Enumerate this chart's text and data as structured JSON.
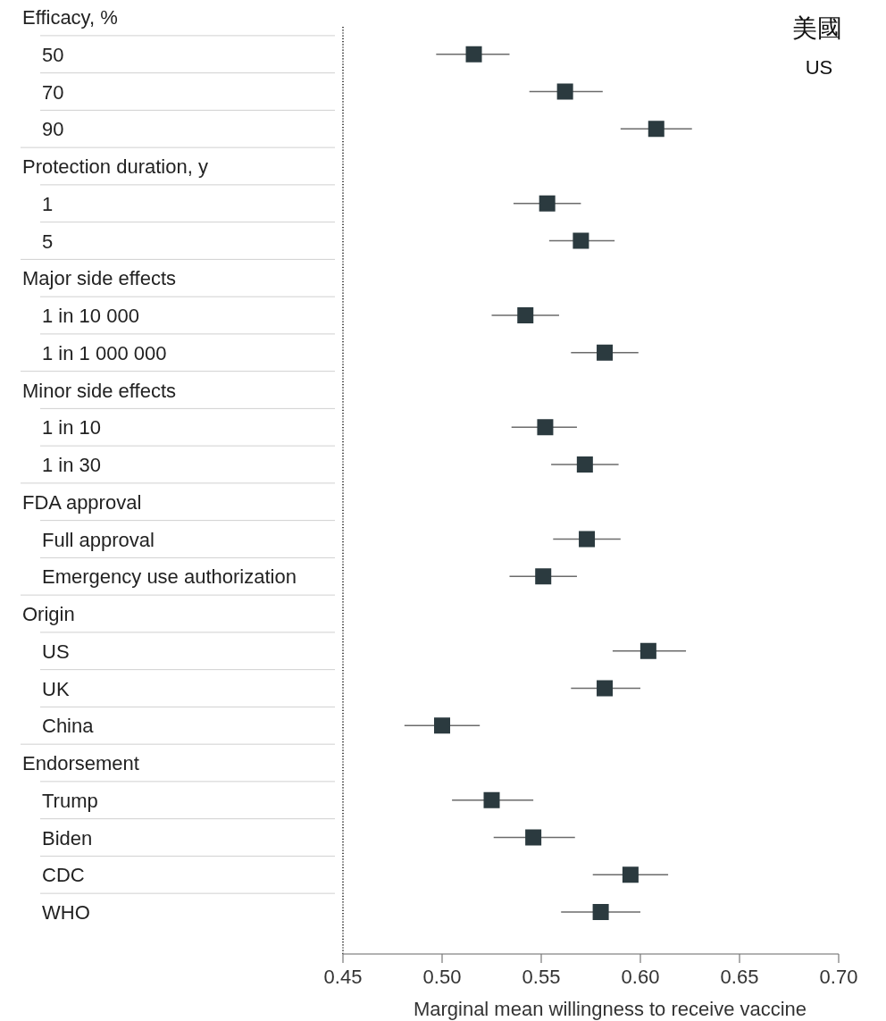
{
  "chart_data": {
    "type": "scatter",
    "orientation": "horizontal",
    "title": "美國",
    "subtitle": "US",
    "xlabel": "Marginal mean willingness to receive vaccine",
    "annotations": [
      "Efficacy, %",
      "Protection duration, y",
      "Major side effects",
      "Minor side effects",
      "FDA approval",
      "Origin",
      "Endorsement"
    ],
    "categories": [
      null,
      "50",
      "70",
      "90",
      null,
      "1",
      "5",
      null,
      "1 in 10 000",
      "1 in 1 000 000",
      null,
      "1 in 10",
      "1 in 30",
      null,
      "Full approval",
      "Emergency use authorization",
      null,
      "US",
      "UK",
      "China",
      null,
      "Trump",
      "Biden",
      "CDC",
      "WHO"
    ],
    "values": [
      null,
      0.516,
      0.562,
      0.608,
      null,
      0.553,
      0.57,
      null,
      0.542,
      0.582,
      null,
      0.552,
      0.572,
      null,
      0.573,
      0.551,
      null,
      0.604,
      0.582,
      0.5,
      null,
      0.525,
      0.546,
      0.595,
      0.58
    ],
    "errors": [
      null,
      [
        0.497,
        0.534
      ],
      [
        0.544,
        0.581
      ],
      [
        0.59,
        0.626
      ],
      null,
      [
        0.536,
        0.57
      ],
      [
        0.554,
        0.587
      ],
      null,
      [
        0.525,
        0.559
      ],
      [
        0.565,
        0.599
      ],
      null,
      [
        0.535,
        0.568
      ],
      [
        0.555,
        0.589
      ],
      null,
      [
        0.556,
        0.59
      ],
      [
        0.534,
        0.568
      ],
      null,
      [
        0.586,
        0.623
      ],
      [
        0.565,
        0.6
      ],
      [
        0.481,
        0.519
      ],
      null,
      [
        0.505,
        0.546
      ],
      [
        0.526,
        0.567
      ],
      [
        0.576,
        0.614
      ],
      [
        0.56,
        0.6
      ]
    ],
    "color": "#2b3a3f",
    "marker": "square",
    "xlim": [
      0.45,
      0.7
    ],
    "xticks": [
      0.45,
      {
        "value": 0.5,
        "label": "0.50"
      },
      0.55,
      {
        "value": 0.6,
        "label": "0.60"
      },
      0.65,
      {
        "value": 0.7,
        "label": "0.70"
      }
    ],
    "ref_lines": [
      {
        "axis": "x",
        "value": 0.45,
        "line_style": "dotted"
      }
    ]
  }
}
